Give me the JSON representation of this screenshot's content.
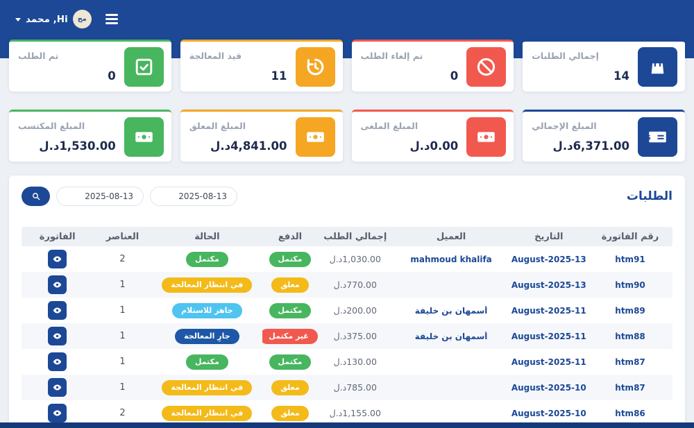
{
  "topbar": {
    "user_name": "Hi, محمد",
    "avatar_text": "مح"
  },
  "colors": {
    "blue": "#1c4896",
    "green": "#47b65f",
    "orange": "#f5a623",
    "red": "#f2594e",
    "yellow": "#f3ba1a",
    "cyan": "#4fc4f0",
    "navy": "#1d57a6"
  },
  "stats": [
    {
      "label": "إجمالي الطلبات",
      "value": "14",
      "accent": "blue",
      "icon": "shopping-bag"
    },
    {
      "label": "تم إلغاء الطلب",
      "value": "0",
      "accent": "red",
      "icon": "ban"
    },
    {
      "label": "قيد المعالجة",
      "value": "11",
      "accent": "orange",
      "icon": "history"
    },
    {
      "label": "تم الطلب",
      "value": "0",
      "accent": "green",
      "icon": "check-square"
    },
    {
      "label": "المبلغ الإجمالي",
      "value": "6,371.00د.ل",
      "accent": "blue",
      "icon": "money-check"
    },
    {
      "label": "المبلغ الملغى",
      "value": "0.00د.ل",
      "accent": "red",
      "icon": "banknote"
    },
    {
      "label": "المبلغ المعلق",
      "value": "4,841.00د.ل",
      "accent": "orange",
      "icon": "banknote"
    },
    {
      "label": "المبلغ المكتسب",
      "value": "1,530.00د.ل",
      "accent": "green",
      "icon": "banknote"
    }
  ],
  "orders_panel": {
    "title": "الطلبات",
    "date_from": "2025-08-13",
    "date_to": "2025-08-13"
  },
  "table": {
    "headers": [
      "رقم الفاتورة",
      "التاريخ",
      "العميل",
      "إجمالي الطلب",
      "الدفع",
      "الحالة",
      "العناصر",
      "الفاتورة"
    ],
    "rows": [
      {
        "invoice_no": "htm91",
        "date": "August-2025-13",
        "client": "mahmoud khalifa",
        "total": "1,030.00د.ل",
        "payment": {
          "label": "مكتمل",
          "color": "green"
        },
        "status": {
          "label": "مكتمل",
          "color": "green"
        },
        "items": "2"
      },
      {
        "invoice_no": "htm90",
        "date": "August-2025-13",
        "client": "",
        "total": "770.00د.ل",
        "payment": {
          "label": "معلق",
          "color": "yellow"
        },
        "status": {
          "label": "في انتظار المعالجة",
          "color": "yellow"
        },
        "items": "1"
      },
      {
        "invoice_no": "htm89",
        "date": "August-2025-11",
        "client": "أسمهان بن خليفة",
        "total": "200.00د.ل",
        "payment": {
          "label": "مكتمل",
          "color": "green"
        },
        "status": {
          "label": "جاهز للاستلام",
          "color": "cyan"
        },
        "items": "1"
      },
      {
        "invoice_no": "htm88",
        "date": "August-2025-11",
        "client": "أسمهان بن خليفة",
        "total": "375.00د.ل",
        "payment": {
          "label": "غير مكتمل",
          "color": "red"
        },
        "status": {
          "label": "جارِ المعالجة",
          "color": "navy"
        },
        "items": "1"
      },
      {
        "invoice_no": "htm87",
        "date": "August-2025-11",
        "client": "",
        "total": "130.00د.ل",
        "payment": {
          "label": "مكتمل",
          "color": "green"
        },
        "status": {
          "label": "مكتمل",
          "color": "green"
        },
        "items": "1"
      },
      {
        "invoice_no": "htm87",
        "date": "August-2025-10",
        "client": "",
        "total": "785.00د.ل",
        "payment": {
          "label": "معلق",
          "color": "yellow"
        },
        "status": {
          "label": "في انتظار المعالجة",
          "color": "yellow"
        },
        "items": "1"
      },
      {
        "invoice_no": "htm86",
        "date": "August-2025-10",
        "client": "",
        "total": "1,155.00د.ل",
        "payment": {
          "label": "معلق",
          "color": "yellow"
        },
        "status": {
          "label": "في انتظار المعالجة",
          "color": "yellow"
        },
        "items": "2"
      }
    ]
  }
}
